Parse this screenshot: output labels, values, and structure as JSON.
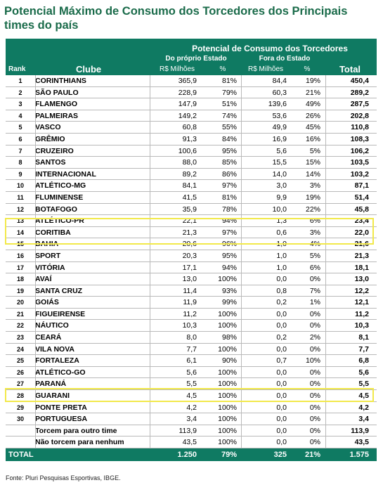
{
  "title": "Potencial Máximo de Consumo dos Torcedores dos Principais times do país",
  "header": {
    "potencial": "Potencial de Consumo dos Torcedores",
    "rank": "Rank",
    "clube": "Clube",
    "do_proprio": "Do próprio Estado",
    "fora": "Fora do Estado",
    "rs_milhoes": "R$ Milhões",
    "pct": "%",
    "total": "Total"
  },
  "rows": [
    {
      "rank": "1",
      "club": "CORINTHIANS",
      "rs1": "365,9",
      "pc1": "81%",
      "rs2": "84,4",
      "pc2": "19%",
      "total": "450,4"
    },
    {
      "rank": "2",
      "club": "SÃO PAULO",
      "rs1": "228,9",
      "pc1": "79%",
      "rs2": "60,3",
      "pc2": "21%",
      "total": "289,2"
    },
    {
      "rank": "3",
      "club": "FLAMENGO",
      "rs1": "147,9",
      "pc1": "51%",
      "rs2": "139,6",
      "pc2": "49%",
      "total": "287,5"
    },
    {
      "rank": "4",
      "club": "PALMEIRAS",
      "rs1": "149,2",
      "pc1": "74%",
      "rs2": "53,6",
      "pc2": "26%",
      "total": "202,8"
    },
    {
      "rank": "5",
      "club": "VASCO",
      "rs1": "60,8",
      "pc1": "55%",
      "rs2": "49,9",
      "pc2": "45%",
      "total": "110,8"
    },
    {
      "rank": "6",
      "club": "GRÊMIO",
      "rs1": "91,3",
      "pc1": "84%",
      "rs2": "16,9",
      "pc2": "16%",
      "total": "108,3"
    },
    {
      "rank": "7",
      "club": "CRUZEIRO",
      "rs1": "100,6",
      "pc1": "95%",
      "rs2": "5,6",
      "pc2": "5%",
      "total": "106,2"
    },
    {
      "rank": "8",
      "club": "SANTOS",
      "rs1": "88,0",
      "pc1": "85%",
      "rs2": "15,5",
      "pc2": "15%",
      "total": "103,5"
    },
    {
      "rank": "9",
      "club": "INTERNACIONAL",
      "rs1": "89,2",
      "pc1": "86%",
      "rs2": "14,0",
      "pc2": "14%",
      "total": "103,2"
    },
    {
      "rank": "10",
      "club": "ATLÉTICO-MG",
      "rs1": "84,1",
      "pc1": "97%",
      "rs2": "3,0",
      "pc2": "3%",
      "total": "87,1"
    },
    {
      "rank": "11",
      "club": "FLUMINENSE",
      "rs1": "41,5",
      "pc1": "81%",
      "rs2": "9,9",
      "pc2": "19%",
      "total": "51,4"
    },
    {
      "rank": "12",
      "club": "BOTAFOGO",
      "rs1": "35,9",
      "pc1": "78%",
      "rs2": "10,0",
      "pc2": "22%",
      "total": "45,8"
    },
    {
      "rank": "13",
      "club": "ATLÉTICO-PR",
      "rs1": "22,1",
      "pc1": "94%",
      "rs2": "1,3",
      "pc2": "6%",
      "total": "23,4"
    },
    {
      "rank": "14",
      "club": "CORITIBA",
      "rs1": "21,3",
      "pc1": "97%",
      "rs2": "0,6",
      "pc2": "3%",
      "total": "22,0"
    },
    {
      "rank": "15",
      "club": "BAHIA",
      "rs1": "20,6",
      "pc1": "96%",
      "rs2": "1,0",
      "pc2": "4%",
      "total": "21,6"
    },
    {
      "rank": "16",
      "club": "SPORT",
      "rs1": "20,3",
      "pc1": "95%",
      "rs2": "1,0",
      "pc2": "5%",
      "total": "21,3"
    },
    {
      "rank": "17",
      "club": "VITÓRIA",
      "rs1": "17,1",
      "pc1": "94%",
      "rs2": "1,0",
      "pc2": "6%",
      "total": "18,1"
    },
    {
      "rank": "18",
      "club": "AVAÍ",
      "rs1": "13,0",
      "pc1": "100%",
      "rs2": "0,0",
      "pc2": "0%",
      "total": "13,0"
    },
    {
      "rank": "19",
      "club": "SANTA CRUZ",
      "rs1": "11,4",
      "pc1": "93%",
      "rs2": "0,8",
      "pc2": "7%",
      "total": "12,2"
    },
    {
      "rank": "20",
      "club": "GOIÁS",
      "rs1": "11,9",
      "pc1": "99%",
      "rs2": "0,2",
      "pc2": "1%",
      "total": "12,1"
    },
    {
      "rank": "21",
      "club": "FIGUEIRENSE",
      "rs1": "11,2",
      "pc1": "100%",
      "rs2": "0,0",
      "pc2": "0%",
      "total": "11,2"
    },
    {
      "rank": "22",
      "club": "NÁUTICO",
      "rs1": "10,3",
      "pc1": "100%",
      "rs2": "0,0",
      "pc2": "0%",
      "total": "10,3"
    },
    {
      "rank": "23",
      "club": "CEARÁ",
      "rs1": "8,0",
      "pc1": "98%",
      "rs2": "0,2",
      "pc2": "2%",
      "total": "8,1"
    },
    {
      "rank": "24",
      "club": "VILA NOVA",
      "rs1": "7,7",
      "pc1": "100%",
      "rs2": "0,0",
      "pc2": "0%",
      "total": "7,7"
    },
    {
      "rank": "25",
      "club": "FORTALEZA",
      "rs1": "6,1",
      "pc1": "90%",
      "rs2": "0,7",
      "pc2": "10%",
      "total": "6,8"
    },
    {
      "rank": "26",
      "club": "ATLÉTICO-GO",
      "rs1": "5,6",
      "pc1": "100%",
      "rs2": "0,0",
      "pc2": "0%",
      "total": "5,6"
    },
    {
      "rank": "27",
      "club": "PARANÁ",
      "rs1": "5,5",
      "pc1": "100%",
      "rs2": "0,0",
      "pc2": "0%",
      "total": "5,5"
    },
    {
      "rank": "28",
      "club": "GUARANI",
      "rs1": "4,5",
      "pc1": "100%",
      "rs2": "0,0",
      "pc2": "0%",
      "total": "4,5"
    },
    {
      "rank": "29",
      "club": "PONTE PRETA",
      "rs1": "4,2",
      "pc1": "100%",
      "rs2": "0,0",
      "pc2": "0%",
      "total": "4,2"
    },
    {
      "rank": "30",
      "club": "PORTUGUESA",
      "rs1": "3,4",
      "pc1": "100%",
      "rs2": "0,0",
      "pc2": "0%",
      "total": "3,4"
    },
    {
      "rank": "",
      "club": "Torcem para outro time",
      "rs1": "113,9",
      "pc1": "100%",
      "rs2": "0,0",
      "pc2": "0%",
      "total": "113,9"
    },
    {
      "rank": "",
      "club": "Não torcem para nenhum",
      "rs1": "43,5",
      "pc1": "100%",
      "rs2": "0,0",
      "pc2": "0%",
      "total": "43,5"
    }
  ],
  "total_row": {
    "label": "TOTAL",
    "rs1": "1.250",
    "pc1": "79%",
    "rs2": "325",
    "pc2": "21%",
    "total": "1.575"
  },
  "source": "Fonte: Pluri Pesquisas Esportivas, IBGE.",
  "colors": {
    "header_bg": "#0f7a62",
    "title": "#1a6b4a",
    "highlight": "#f2e94a"
  }
}
